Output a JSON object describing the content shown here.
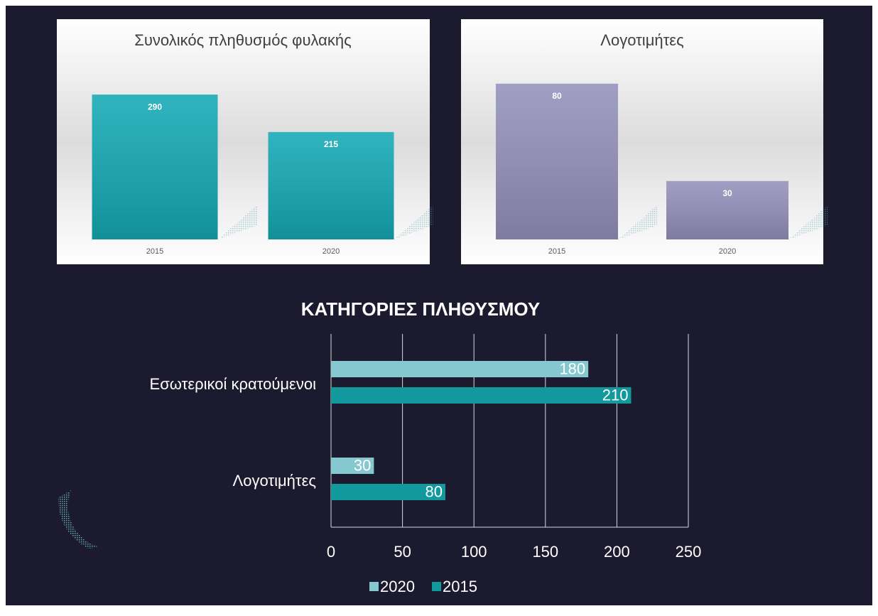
{
  "chart_data": [
    {
      "type": "bar",
      "title": "Συνολικός πληθυσμός φυλακής",
      "categories": [
        "2015",
        "2020"
      ],
      "values": [
        290,
        215
      ],
      "color": "#14a9b4"
    },
    {
      "type": "bar",
      "title": "Λογοτιμήτες",
      "categories": [
        "2015",
        "2020"
      ],
      "values": [
        80,
        30
      ],
      "color": "#9391bb"
    },
    {
      "type": "hbar",
      "title": "ΚΑΤΗΓΟΡΙΕΣ ΠΛΗΘΥΣΜΟΥ",
      "categories": [
        "Εσωτερικοί κρατούμενοι",
        "Λογοτιμήτες"
      ],
      "series": [
        {
          "name": "2020",
          "color": "#86c8d0",
          "values": [
            180,
            30
          ]
        },
        {
          "name": "2015",
          "color": "#11999e",
          "values": [
            210,
            80
          ]
        }
      ],
      "xlim": [
        0,
        250
      ],
      "xticks": [
        0,
        50,
        100,
        150,
        200,
        250
      ],
      "grid": true,
      "legend": "bottom"
    }
  ]
}
